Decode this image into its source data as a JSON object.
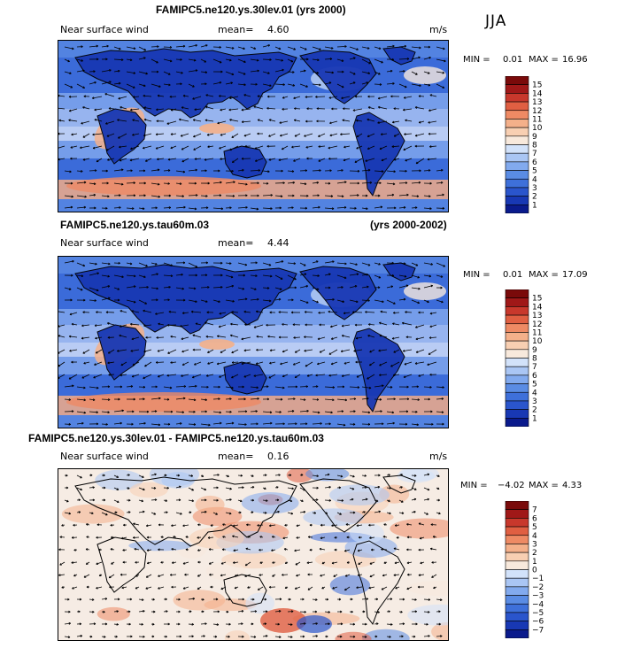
{
  "season": "JJA",
  "colors": {
    "ramp15": [
      "#0a1a8c",
      "#1838b4",
      "#2a55cc",
      "#3e70da",
      "#5a8ce4",
      "#82aaee",
      "#aac6f4",
      "#d2e2fa",
      "#f8e9dc",
      "#f8cfb2",
      "#f4b08a",
      "#ee8a64",
      "#e05f42",
      "#c8382c",
      "#a01818",
      "#7a0a0a"
    ],
    "diff": [
      "#0a1a8c",
      "#1838b4",
      "#2a55cc",
      "#3e70da",
      "#5a8ce4",
      "#82aaee",
      "#aac6f4",
      "#d2e2fa",
      "#f8e9dc",
      "#f8cfb2",
      "#f4b08a",
      "#ee8a64",
      "#e05f42",
      "#c8382c",
      "#a01818"
    ]
  },
  "panels": [
    {
      "title": "FAMIPC5.ne120.ys.30lev.01 (yrs 2000)",
      "variable": "Near surface wind",
      "mean_label": "mean=",
      "mean": "4.60",
      "units": "m/s",
      "min_label": "MIN =",
      "min": "0.01",
      "max_label": "MAX =",
      "max": "16.96",
      "colorbar_labels": [
        "15",
        "14",
        "13",
        "12",
        "11",
        "10",
        "9",
        "8",
        "7",
        "6",
        "5",
        "4",
        "3",
        "2",
        "1"
      ]
    },
    {
      "title": "FAMIPC5.ne120.ys.tau60m.03",
      "title_right": "(yrs 2000-2002)",
      "variable": "Near surface wind",
      "mean_label": "mean=",
      "mean": "4.44",
      "min_label": "MIN =",
      "min": "0.01",
      "max_label": "MAX =",
      "max": "17.09",
      "colorbar_labels": [
        "15",
        "14",
        "13",
        "12",
        "11",
        "10",
        "9",
        "8",
        "7",
        "6",
        "5",
        "4",
        "3",
        "2",
        "1"
      ]
    },
    {
      "title": "FAMIPC5.ne120.ys.30lev.01 - FAMIPC5.ne120.ys.tau60m.03",
      "variable": "Near surface wind",
      "mean_label": "mean=",
      "mean": "0.16",
      "units": "m/s",
      "min_label": "MIN =",
      "min": "−4.02",
      "max_label": "MAX =",
      "max": "4.33",
      "colorbar_labels": [
        "7",
        "6",
        "5",
        "4",
        "3",
        "2",
        "1",
        "0",
        "−1",
        "−2",
        "−3",
        "−4",
        "−5",
        "−6",
        "−7"
      ]
    }
  ],
  "chart_data": [
    {
      "type": "heatmap",
      "title": "FAMIPC5.ne120.ys.30lev.01 (yrs 2000)",
      "field": "Near surface wind speed with wind vectors",
      "units": "m/s",
      "mean": 4.6,
      "min": 0.01,
      "max": 16.96,
      "levels": [
        1,
        2,
        3,
        4,
        5,
        6,
        7,
        8,
        9,
        10,
        11,
        12,
        13,
        14,
        15
      ]
    },
    {
      "type": "heatmap",
      "title": "FAMIPC5.ne120.ys.tau60m.03 (yrs 2000-2002)",
      "field": "Near surface wind speed with wind vectors",
      "units": "m/s",
      "mean": 4.44,
      "min": 0.01,
      "max": 17.09,
      "levels": [
        1,
        2,
        3,
        4,
        5,
        6,
        7,
        8,
        9,
        10,
        11,
        12,
        13,
        14,
        15
      ]
    },
    {
      "type": "heatmap",
      "title": "FAMIPC5.ne120.ys.30lev.01 - FAMIPC5.ne120.ys.tau60m.03",
      "field": "Near surface wind difference with vector differences",
      "units": "m/s",
      "mean": 0.16,
      "min": -4.02,
      "max": 4.33,
      "levels": [
        -7,
        -6,
        -5,
        -4,
        -3,
        -2,
        -1,
        0,
        1,
        2,
        3,
        4,
        5,
        6,
        7
      ]
    }
  ]
}
